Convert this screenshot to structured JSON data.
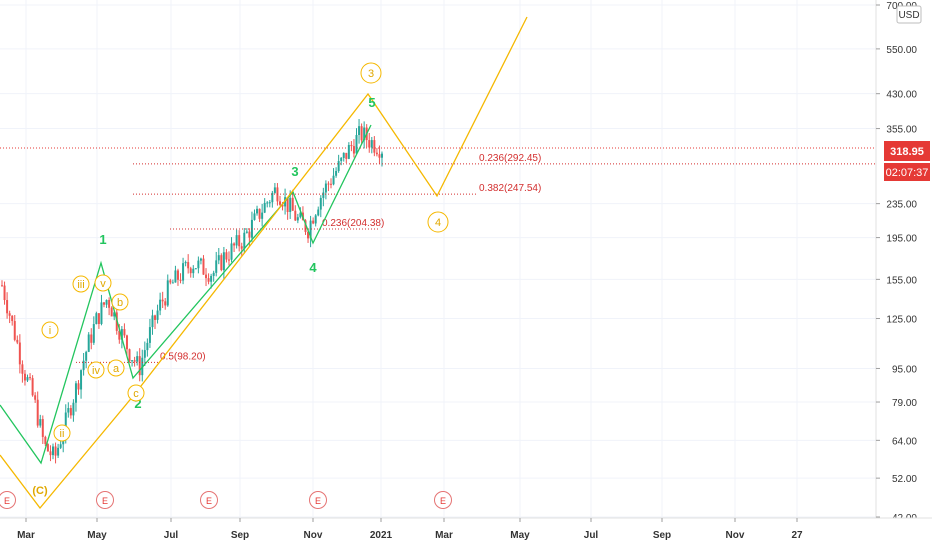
{
  "price_axis": {
    "currency": "USD",
    "labels": [
      "700.00",
      "550.00",
      "430.00",
      "355.00",
      "235.00",
      "195.00",
      "155.00",
      "125.00",
      "95.00",
      "79.00",
      "64.00",
      "52.00",
      "42.00"
    ],
    "current_price": "318.95",
    "countdown": "02:07:37",
    "current_price_color": "#e53935"
  },
  "time_axis": {
    "labels": [
      "Mar",
      "May",
      "Jul",
      "Sep",
      "Nov",
      "2021",
      "Mar",
      "May",
      "Jul",
      "Sep",
      "Nov",
      "27"
    ]
  },
  "fib_levels": [
    {
      "label": "0.236(292.45)"
    },
    {
      "label": "0.382(247.54)"
    },
    {
      "label": "0.236(204.38)"
    },
    {
      "label": "0.5(98.20)"
    }
  ],
  "wave_labels_green": [
    "1",
    "2",
    "3",
    "4",
    "5"
  ],
  "wave_labels_orange": [
    "(C)",
    "i",
    "ii",
    "iii",
    "iv",
    "v",
    "a",
    "b",
    "c",
    "3",
    "4"
  ],
  "earnings_marker": "E",
  "colors": {
    "up_candle": "#26a69a",
    "down_candle": "#ef5350",
    "green_wave": "#22c55e",
    "orange_wave": "#f5b800",
    "fib": "#d32f2f",
    "wave_c_teal": "#26a69a"
  },
  "chart_data": {
    "type": "line",
    "title": "",
    "xlabel": "",
    "ylabel": "",
    "y_scale": "log",
    "ylim": [
      42,
      700
    ],
    "x_ticks": [
      "Mar",
      "May",
      "Jul",
      "Sep",
      "Nov",
      "2021",
      "Mar",
      "May",
      "Jul",
      "Sep",
      "Nov",
      "27"
    ],
    "grid": true,
    "series": [
      {
        "values": [
          150,
          120,
          95,
          80,
          62,
          58,
          70,
          85,
          105,
          125,
          140,
          120,
          105,
          95,
          115,
          135,
          150,
          160,
          170,
          165,
          160,
          175,
          185,
          195,
          215,
          235,
          255,
          235,
          215,
          205,
          240,
          265,
          290,
          320,
          345,
          330,
          318.95
        ]
      }
    ],
    "annotations": {
      "fib_levels": [
        292.45,
        247.54,
        204.38,
        98.2
      ],
      "current_price": 318.95
    }
  }
}
